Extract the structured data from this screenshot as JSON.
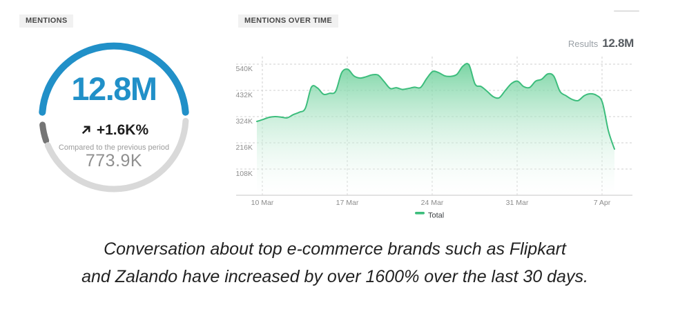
{
  "chart_data": [
    {
      "type": "gauge",
      "title": "MENTIONS",
      "value": "12.8M",
      "change": "+1.6K%",
      "trend_direction": "up",
      "comparison_label": "Compared to the previous period",
      "previous_value": "773.9K",
      "progress_fraction": 0.48,
      "colors": {
        "accent_blue": "#2190c8",
        "arc_track_light": "#d9d9d9",
        "arc_segment_dark": "#757575",
        "trend_text": "#1d1d1d",
        "muted_text": "#9b9b9b",
        "previous_value_text": "#8f8f8f"
      }
    },
    {
      "type": "area",
      "title": "MENTIONS OVER TIME",
      "results_label": "Results",
      "results_value": "12.8M",
      "grid": "dashed",
      "legend_position": "bottom-center",
      "legend": [
        {
          "name": "Total",
          "color": "#3cbd7c"
        }
      ],
      "x_axis": {
        "unit": "date",
        "start": "10 Mar",
        "end": "8 Apr",
        "ticks": [
          {
            "label": "10 Mar",
            "pos": 0.0154
          },
          {
            "label": "17 Mar",
            "pos": 0.2529
          },
          {
            "label": "24 Mar",
            "pos": 0.4903
          },
          {
            "label": "31 Mar",
            "pos": 0.7278
          },
          {
            "label": "7 Apr",
            "pos": 0.9652
          }
        ]
      },
      "y_axis": {
        "unit": "mentions",
        "min_k": 0,
        "max_k": 583,
        "ticks": [
          {
            "label": "540K",
            "value_k": 540
          },
          {
            "label": "432K",
            "value_k": 432
          },
          {
            "label": "324K",
            "value_k": 324
          },
          {
            "label": "216K",
            "value_k": 216
          },
          {
            "label": "108K",
            "value_k": 108
          }
        ]
      },
      "series": [
        {
          "name": "Total",
          "color": "#3cbd7c",
          "fill_top": "#6fd19c",
          "fill_bottom": "#ffffff",
          "sample_interval_days": 0.5,
          "values_k": [
            304,
            312,
            321,
            324,
            322,
            319,
            332,
            342,
            358,
            445,
            442,
            416,
            420,
            428,
            505,
            519,
            492,
            483,
            488,
            496,
            495,
            468,
            440,
            443,
            436,
            440,
            445,
            444,
            480,
            510,
            505,
            492,
            490,
            498,
            532,
            537,
            458,
            448,
            428,
            406,
            402,
            432,
            460,
            470,
            448,
            444,
            470,
            478,
            500,
            490,
            428,
            410,
            395,
            390,
            410,
            418,
            412,
            383,
            265,
            190
          ]
        }
      ]
    }
  ],
  "caption": {
    "line1": "Conversation about top e-commerce brands such as Flipkart",
    "line2": "and Zalando have increased by over 1600% over the last 30 days."
  }
}
